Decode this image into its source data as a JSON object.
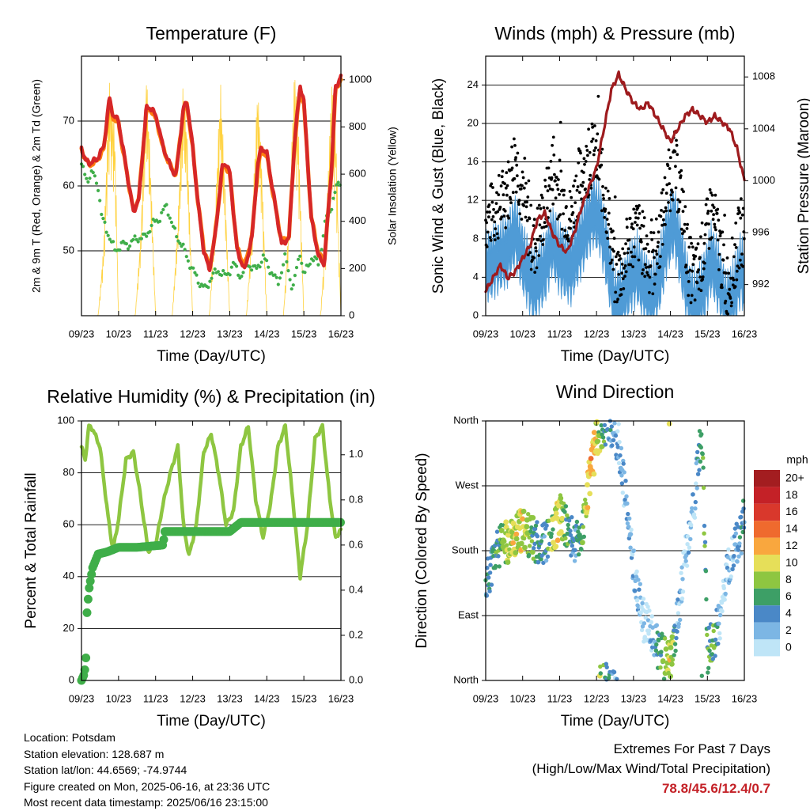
{
  "figure": {
    "location_label": "Location: Potsdam",
    "elevation_label": "Station elevation: 128.687 m",
    "latlon_label": "Station lat/lon: 44.6569; -74.9744",
    "created_label": "Figure created on Mon, 2025-06-16, at 23:36 UTC",
    "timestamp_label": "Most recent data timestamp: 2025/06/16 23:15:00",
    "extremes_title": "Extremes For Past 7 Days",
    "extremes_subtitle": "(High/Low/Max Wind/Total Precipitation)",
    "extremes_values": "78.8/45.6/12.4/0.7",
    "extremes_color": "#c42127"
  },
  "chart_data": [
    {
      "type": "line",
      "title": "Temperature (F)",
      "xlabel": "Time (Day/UTC)",
      "ylabel": "2m & 9m T (Red, Orange) & 2m Td (Green)",
      "y2label": "Solar Insolation (Yellow)",
      "x_ticks": [
        "09/23",
        "10/23",
        "11/23",
        "12/23",
        "13/23",
        "14/23",
        "15/23",
        "16/23"
      ],
      "ylim": [
        40,
        80
      ],
      "y_ticks": [
        50,
        60,
        70
      ],
      "y2lim": [
        0,
        1100
      ],
      "y2_ticks": [
        0,
        200,
        400,
        600,
        800,
        1000
      ],
      "grid": "horizontal",
      "series": [
        {
          "color": "#d62728",
          "axis": "left",
          "x": [
            9.0,
            9.1,
            9.2,
            9.4,
            9.6,
            9.75,
            9.85,
            10.0,
            10.2,
            10.4,
            10.55,
            10.75,
            10.9,
            11.05,
            11.2,
            11.4,
            11.55,
            11.75,
            11.85,
            12.0,
            12.15,
            12.3,
            12.45,
            12.6,
            12.8,
            12.9,
            13.0,
            13.2,
            13.4,
            13.6,
            13.75,
            13.85,
            14.0,
            14.2,
            14.4,
            14.6,
            14.75,
            14.9,
            15.0,
            15.2,
            15.4,
            15.55,
            15.75,
            15.85,
            16.0
          ],
          "values": [
            66,
            64,
            63.5,
            64,
            66,
            73.5,
            71,
            70,
            63,
            56,
            58,
            72,
            72,
            70,
            66,
            63,
            61.5,
            72,
            73,
            66,
            57,
            50,
            47,
            52,
            63,
            63.5,
            62,
            50,
            47,
            52,
            63,
            66,
            65,
            58,
            51,
            52,
            67,
            75.5,
            73,
            55,
            49,
            48,
            63,
            75,
            77
          ]
        },
        {
          "color": "#ff7f0e",
          "axis": "left",
          "x": [
            9.0,
            9.2,
            9.4,
            9.6,
            9.75,
            9.85,
            10.0,
            10.2,
            10.4,
            10.55,
            10.75,
            10.9,
            11.05,
            11.2,
            11.4,
            11.55,
            11.75,
            11.85,
            12.0,
            12.15,
            12.3,
            12.45,
            12.6,
            12.8,
            12.9,
            13.0,
            13.2,
            13.4,
            13.6,
            13.75,
            13.85,
            14.0,
            14.2,
            14.4,
            14.6,
            14.75,
            14.9,
            15.0,
            15.2,
            15.4,
            15.55,
            15.75,
            15.85,
            16.0
          ],
          "values": [
            65.5,
            63.2,
            63.8,
            65.6,
            73,
            70.6,
            69.6,
            62.8,
            56.2,
            58.2,
            71.6,
            71.6,
            69.6,
            65.8,
            63,
            61.8,
            71.6,
            72.6,
            65.8,
            57.2,
            50.4,
            47.4,
            52.2,
            62.6,
            63,
            61.8,
            50.4,
            47.6,
            52.2,
            62.6,
            65.6,
            64.6,
            57.8,
            51.4,
            52.2,
            66.6,
            75,
            72.6,
            55.2,
            49.4,
            48.4,
            62.6,
            74.6,
            76.6
          ]
        },
        {
          "color": "#3fae49",
          "axis": "left",
          "x": [
            9.0,
            9.15,
            9.3,
            9.45,
            9.55,
            9.7,
            9.9,
            10.1,
            10.3,
            10.5,
            10.7,
            10.9,
            11.1,
            11.3,
            11.5,
            11.7,
            11.85,
            12.0,
            12.1,
            12.2,
            12.35,
            12.5,
            12.7,
            12.9,
            13.1,
            13.3,
            13.5,
            13.7,
            13.9,
            14.1,
            14.3,
            14.5,
            14.7,
            14.9,
            15.0,
            15.2,
            15.4,
            15.6,
            15.75,
            15.9,
            16.0
          ],
          "values": [
            63,
            61,
            62,
            60,
            55,
            53,
            50,
            51,
            51,
            52,
            52,
            54,
            55,
            57,
            53,
            51,
            49,
            47,
            46,
            45,
            44,
            46,
            47,
            46,
            48,
            46,
            48,
            47,
            49,
            47,
            45,
            49,
            44,
            50,
            46,
            49,
            48,
            55,
            57,
            60,
            61
          ]
        },
        {
          "color": "#ffd23f",
          "axis": "right",
          "x": [
            9.0,
            9.45,
            9.6,
            9.75,
            9.9,
            10.0,
            10.2,
            10.45,
            10.6,
            10.75,
            10.85,
            11.0,
            11.05,
            11.45,
            11.6,
            11.75,
            11.85,
            12.0,
            12.1,
            12.45,
            12.6,
            12.75,
            12.85,
            13.0,
            13.1,
            13.45,
            13.6,
            13.75,
            13.85,
            14.0,
            14.1,
            14.45,
            14.6,
            14.75,
            14.85,
            15.0,
            15.1,
            15.45,
            15.6,
            15.75,
            15.85,
            16.0
          ],
          "values": [
            0,
            0,
            300,
            1000,
            800,
            0,
            0,
            0,
            350,
            1050,
            700,
            0,
            0,
            0,
            400,
            1020,
            780,
            0,
            0,
            0,
            420,
            1000,
            650,
            0,
            0,
            0,
            380,
            980,
            700,
            0,
            0,
            0,
            420,
            1060,
            800,
            0,
            0,
            0,
            380,
            1000,
            850,
            0
          ]
        }
      ]
    },
    {
      "type": "line",
      "title": "Winds (mph) & Pressure (mb)",
      "xlabel": "Time (Day/UTC)",
      "ylabel": "Sonic Wind & Gust (Blue, Black)",
      "y2label": "Station Pressure (Maroon)",
      "x_ticks": [
        "09/23",
        "10/23",
        "11/23",
        "12/23",
        "13/23",
        "14/23",
        "15/23",
        "16/23"
      ],
      "ylim": [
        0,
        27
      ],
      "y_ticks": [
        0,
        4,
        8,
        12,
        16,
        20,
        24
      ],
      "y2lim": [
        989.6,
        1009.6
      ],
      "y2_ticks": [
        992,
        996,
        1000,
        1004,
        1008
      ],
      "grid": "horizontal",
      "series": [
        {
          "color": "#4f9bd6",
          "axis": "left",
          "x": [
            9.0,
            9.3,
            9.6,
            9.8,
            10.0,
            10.3,
            10.6,
            10.8,
            11.0,
            11.3,
            11.5,
            11.7,
            11.9,
            12.1,
            12.3,
            12.5,
            12.7,
            12.9,
            13.1,
            13.3,
            13.5,
            13.7,
            13.9,
            14.1,
            14.3,
            14.5,
            14.7,
            14.9,
            15.1,
            15.3,
            15.5,
            15.7,
            15.9,
            16.0
          ],
          "values": [
            5,
            6,
            7,
            9,
            6,
            3,
            5,
            8,
            6,
            5,
            7,
            9,
            11,
            10,
            6,
            1,
            2,
            4,
            5,
            3,
            2,
            4,
            8,
            10,
            6,
            2,
            1,
            3,
            6,
            4,
            1,
            2,
            5,
            4
          ]
        },
        {
          "color": "#000000",
          "axis": "left",
          "x": [
            9.0,
            9.3,
            9.6,
            9.8,
            10.0,
            10.3,
            10.6,
            10.8,
            11.0,
            11.3,
            11.5,
            11.7,
            11.9,
            12.1,
            12.3,
            12.5,
            12.7,
            12.9,
            13.1,
            13.3,
            13.5,
            13.7,
            13.9,
            14.1,
            14.3,
            14.5,
            14.7,
            14.9,
            15.1,
            15.3,
            15.5,
            15.7,
            15.9,
            16.0
          ],
          "values": [
            10,
            11,
            13,
            17,
            12,
            7,
            11,
            15,
            13,
            10,
            14,
            15,
            17,
            15,
            11,
            4,
            5,
            8,
            9,
            7,
            5,
            8,
            13,
            16,
            12,
            5,
            4,
            7,
            11,
            8,
            3,
            5,
            9,
            8
          ]
        },
        {
          "color": "#9e1b1e",
          "axis": "right",
          "x": [
            9.0,
            9.2,
            9.4,
            9.6,
            9.8,
            10.0,
            10.2,
            10.4,
            10.6,
            10.8,
            11.0,
            11.2,
            11.4,
            11.6,
            11.8,
            12.0,
            12.2,
            12.4,
            12.6,
            12.8,
            13.0,
            13.2,
            13.4,
            13.6,
            13.8,
            14.0,
            14.2,
            14.4,
            14.6,
            14.8,
            15.0,
            15.2,
            15.4,
            15.6,
            15.8,
            16.0
          ],
          "values": [
            991.5,
            992.5,
            993.5,
            992.5,
            993,
            994,
            995,
            997,
            997.5,
            996,
            995,
            994.5,
            996,
            998,
            999.5,
            1001,
            1004,
            1007,
            1008.2,
            1007,
            1006,
            1005.5,
            1006,
            1005,
            1004,
            1003,
            1004,
            1005,
            1005.5,
            1005,
            1004.5,
            1005,
            1004.5,
            1004,
            1002.5,
            1000
          ]
        }
      ]
    },
    {
      "type": "line",
      "title": "Relative Humidity (%) & Precipitation (in)",
      "xlabel": "Time (Day/UTC)",
      "ylabel": "Percent & Total Rainfall",
      "x_ticks": [
        "09/23",
        "10/23",
        "11/23",
        "12/23",
        "13/23",
        "14/23",
        "15/23",
        "16/23"
      ],
      "ylim": [
        0,
        100
      ],
      "y_ticks": [
        0,
        20,
        40,
        60,
        80,
        100
      ],
      "y2lim": [
        0,
        1.15
      ],
      "y2_ticks": [
        "0.0",
        "0.2",
        "0.4",
        "0.6",
        "0.8",
        "1.0"
      ],
      "grid": "horizontal",
      "series": [
        {
          "color": "#8ec641",
          "axis": "left",
          "x": [
            9.0,
            9.1,
            9.2,
            9.3,
            9.5,
            9.7,
            9.85,
            10.0,
            10.2,
            10.4,
            10.55,
            10.8,
            11.0,
            11.2,
            11.4,
            11.6,
            11.75,
            11.9,
            12.1,
            12.3,
            12.5,
            12.7,
            12.9,
            13.1,
            13.3,
            13.5,
            13.7,
            13.9,
            14.1,
            14.3,
            14.5,
            14.7,
            14.9,
            15.1,
            15.3,
            15.5,
            15.7,
            15.85,
            16.0
          ],
          "values": [
            90,
            85,
            98,
            97,
            90,
            65,
            50,
            62,
            85,
            88,
            75,
            50,
            52,
            68,
            80,
            90,
            60,
            48,
            60,
            88,
            95,
            80,
            60,
            65,
            90,
            98,
            70,
            55,
            68,
            90,
            98,
            70,
            40,
            60,
            93,
            98,
            70,
            55,
            58
          ]
        },
        {
          "color": "#3fae49",
          "axis": "right",
          "x": [
            9.0,
            9.08,
            9.12,
            9.15,
            9.2,
            9.3,
            9.45,
            9.7,
            10.0,
            10.5,
            11.2,
            11.25,
            11.5,
            12.0,
            13.0,
            13.3,
            13.5,
            14.0,
            15.0,
            16.0
          ],
          "values": [
            0.0,
            0.03,
            0.1,
            0.3,
            0.4,
            0.5,
            0.56,
            0.57,
            0.59,
            0.59,
            0.6,
            0.66,
            0.66,
            0.66,
            0.66,
            0.7,
            0.7,
            0.7,
            0.7,
            0.7
          ]
        }
      ]
    },
    {
      "type": "scatter",
      "title": "Wind Direction",
      "xlabel": "Time (Day/UTC)",
      "ylabel": "Direction (Colored By Speed)",
      "x_ticks": [
        "09/23",
        "10/23",
        "11/23",
        "12/23",
        "13/23",
        "14/23",
        "15/23",
        "16/23"
      ],
      "y_ticks": [
        "North",
        "East",
        "South",
        "West",
        "North"
      ],
      "ylim": [
        0,
        360
      ],
      "grid": "horizontal",
      "colorbar_label": "mph",
      "colorbar_ticks": [
        "20+",
        "18",
        "16",
        "14",
        "12",
        "10",
        "8",
        "6",
        "4",
        "2",
        "0"
      ],
      "colorbar_colors": [
        "#a31d20",
        "#c42127",
        "#d9382c",
        "#ef6a2e",
        "#f9a73e",
        "#e6df59",
        "#8ec641",
        "#3d9f66",
        "#4a88c7",
        "#7cb6e4",
        "#bfe5f7"
      ],
      "series": [
        {
          "x": [
            9.0,
            9.1,
            9.3,
            9.5,
            9.8,
            10.0,
            10.3,
            10.6,
            10.8,
            11.0,
            11.2,
            11.4,
            11.6,
            11.75,
            11.85,
            12.0,
            12.1,
            12.3,
            12.6,
            12.9,
            13.1,
            13.3,
            13.55,
            13.7,
            13.85,
            14.0,
            14.2,
            14.35,
            14.5,
            14.65,
            14.85,
            15.0,
            15.2,
            15.4,
            15.55,
            15.7,
            15.9,
            16.0
          ],
          "values": [
            130,
            150,
            180,
            190,
            200,
            210,
            195,
            190,
            200,
            230,
            210,
            190,
            200,
            250,
            300,
            330,
            350,
            360,
            330,
            200,
            120,
            80,
            60,
            40,
            30,
            20,
            90,
            150,
            200,
            250,
            350,
            40,
            60,
            100,
            150,
            180,
            200,
            230
          ],
          "speeds": [
            4,
            4,
            6,
            8,
            10,
            10,
            6,
            4,
            8,
            10,
            6,
            4,
            6,
            10,
            12,
            10,
            8,
            4,
            2,
            2,
            2,
            0,
            2,
            6,
            8,
            10,
            2,
            0,
            2,
            2,
            6,
            6,
            6,
            0,
            2,
            2,
            4,
            4
          ]
        }
      ]
    }
  ]
}
